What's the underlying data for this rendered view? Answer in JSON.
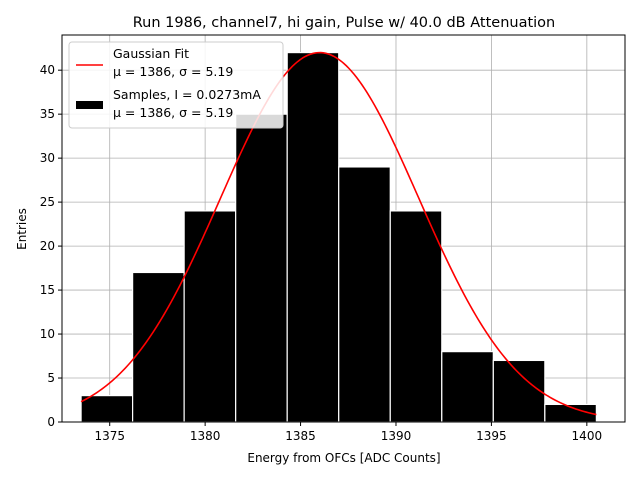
{
  "chart_data": {
    "type": "bar",
    "title": "Run 1986, channel7, hi gain, Pulse w/ 40.0 dB Attenuation",
    "xlabel": "Energy from OFCs [ADC Counts]",
    "ylabel": "Entries",
    "xlim": [
      1372.5,
      1402.0
    ],
    "ylim": [
      0,
      44
    ],
    "xticks": [
      1375,
      1380,
      1385,
      1390,
      1395,
      1400
    ],
    "yticks": [
      0,
      5,
      10,
      15,
      20,
      25,
      30,
      35,
      40
    ],
    "grid": true,
    "legend_position": "top-left",
    "histogram": {
      "bin_edges": [
        1373.5,
        1376.2,
        1378.9,
        1381.6,
        1384.3,
        1387.0,
        1389.7,
        1392.4,
        1395.1,
        1397.8,
        1400.5
      ],
      "counts": [
        3,
        17,
        24,
        35,
        42,
        29,
        24,
        8,
        7,
        2
      ],
      "color": "#000000",
      "edgecolor": "#ffffff"
    },
    "fit": {
      "type": "gaussian",
      "amplitude": 42,
      "mu": 1386,
      "sigma": 5.19,
      "x_range": [
        1373.5,
        1400.5
      ],
      "color": "#ff0000"
    },
    "legend": [
      {
        "kind": "line",
        "color": "#ff0000",
        "line1": "Gaussian Fit",
        "line2": "μ = 1386, σ = 5.19"
      },
      {
        "kind": "patch",
        "color": "#000000",
        "line1": "Samples, I = 0.0273mA",
        "line2": "μ = 1386, σ = 5.19"
      }
    ]
  }
}
